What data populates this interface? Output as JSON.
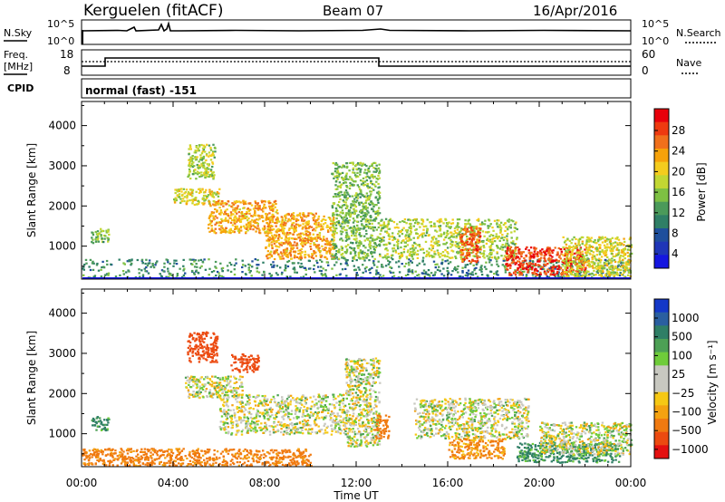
{
  "header": {
    "station": "Kerguelen (fitACF)",
    "beam": "Beam 07",
    "date": "16/Apr/2016"
  },
  "strips": {
    "nsky_label": "N.Sky",
    "nsky_ticks": [
      "10^5",
      "10^0"
    ],
    "nsearch_label": "N.Search",
    "nsearch_ticks": [
      "10^5",
      "10^0"
    ],
    "freq_label_line1": "Freq.",
    "freq_label_line2": "[MHz]",
    "freq_ticks": [
      "18",
      "8"
    ],
    "nave_label": "Nave",
    "nave_ticks": [
      "60",
      "0"
    ],
    "cpid_label": "CPID",
    "cpid_value": "normal (fast) -151"
  },
  "axes": {
    "ylabel": "Slant Range [km]",
    "xlabel": "Time UT",
    "y_ticks": [
      "4000",
      "3000",
      "2000",
      "1000"
    ],
    "x_ticks": [
      "00:00",
      "04:00",
      "08:00",
      "12:00",
      "16:00",
      "20:00",
      "00:00"
    ]
  },
  "colorbars": {
    "power_label": "Power [dB]",
    "power_ticks": [
      "28",
      "24",
      "20",
      "16",
      "12",
      "8",
      "4"
    ],
    "power_colors": [
      "#e8000b",
      "#ee3a10",
      "#f0701c",
      "#f6a20a",
      "#f4cc1e",
      "#c2d733",
      "#7ec043",
      "#4b9a5a",
      "#2f7f66",
      "#1f4f9c",
      "#1f36b8",
      "#1516e0"
    ],
    "velocity_label": "Velocity [m s⁻¹]",
    "velocity_ticks": [
      "1000",
      "500",
      "100",
      "25",
      "−25",
      "−100",
      "−500",
      "−1000"
    ],
    "velocity_colors": [
      "#1438c8",
      "#2a5fa0",
      "#2f7f66",
      "#4da055",
      "#6fcc3a",
      "#c8c8c0",
      "#c8c8c0",
      "#f6c814",
      "#f4a210",
      "#f07a10",
      "#ec4a10",
      "#e41010"
    ]
  },
  "chart_data": [
    {
      "type": "heatmap",
      "title": "Power",
      "xlabel": "Time UT",
      "ylabel": "Slant Range [km]",
      "xlim": [
        0,
        24
      ],
      "ylim": [
        180,
        4600
      ],
      "colorbar": "Power [dB]",
      "regions": [
        {
          "t0": 0.4,
          "t1": 1.2,
          "r0": 1100,
          "r1": 1450,
          "db": 12
        },
        {
          "t0": 0.0,
          "t1": 24.0,
          "r0": 220,
          "r1": 700,
          "db": 8
        },
        {
          "t0": 4.6,
          "t1": 5.8,
          "r0": 2700,
          "r1": 3550,
          "db": 14
        },
        {
          "t0": 4.0,
          "t1": 6.0,
          "r0": 2050,
          "r1": 2450,
          "db": 16
        },
        {
          "t0": 5.5,
          "t1": 8.5,
          "r0": 1350,
          "r1": 2150,
          "db": 20
        },
        {
          "t0": 8.0,
          "t1": 11.0,
          "r0": 700,
          "r1": 1850,
          "db": 20
        },
        {
          "t0": 10.9,
          "t1": 13.0,
          "r0": 700,
          "r1": 3100,
          "db": 12
        },
        {
          "t0": 13.0,
          "t1": 19.0,
          "r0": 700,
          "r1": 1700,
          "db": 14
        },
        {
          "t0": 16.5,
          "t1": 17.4,
          "r0": 600,
          "r1": 1500,
          "db": 24
        },
        {
          "t0": 18.5,
          "t1": 22.0,
          "r0": 300,
          "r1": 1000,
          "db": 26
        },
        {
          "t0": 21.0,
          "t1": 24.0,
          "r0": 250,
          "r1": 1250,
          "db": 16
        }
      ]
    },
    {
      "type": "heatmap",
      "title": "Velocity",
      "xlabel": "Time UT",
      "ylabel": "Slant Range [km]",
      "xlim": [
        0,
        24
      ],
      "ylim": [
        180,
        4600
      ],
      "colorbar": "Velocity [m s⁻¹]",
      "regions": [
        {
          "t0": 0.4,
          "t1": 1.2,
          "r0": 1100,
          "r1": 1450,
          "v": 120
        },
        {
          "t0": 0.0,
          "t1": 10.0,
          "r0": 220,
          "r1": 650,
          "v": -150
        },
        {
          "t0": 4.6,
          "t1": 5.9,
          "r0": 2800,
          "r1": 3550,
          "v": -400
        },
        {
          "t0": 6.5,
          "t1": 7.7,
          "r0": 2550,
          "r1": 3000,
          "v": -500
        },
        {
          "t0": 4.5,
          "t1": 7.0,
          "r0": 1900,
          "r1": 2450,
          "v": 0
        },
        {
          "t0": 6.0,
          "t1": 11.5,
          "r0": 1000,
          "r1": 2000,
          "v": 0
        },
        {
          "t0": 11.5,
          "t1": 13.0,
          "r0": 700,
          "r1": 2900,
          "v": 0
        },
        {
          "t0": 12.8,
          "t1": 13.4,
          "r0": 900,
          "r1": 1500,
          "v": -200
        },
        {
          "t0": 14.5,
          "t1": 19.5,
          "r0": 900,
          "r1": 1900,
          "v": 0
        },
        {
          "t0": 16.0,
          "t1": 18.5,
          "r0": 400,
          "r1": 900,
          "v": -120
        },
        {
          "t0": 19.0,
          "t1": 23.5,
          "r0": 300,
          "r1": 800,
          "v": 120
        },
        {
          "t0": 20.0,
          "t1": 24.0,
          "r0": 500,
          "r1": 1300,
          "v": 0
        }
      ]
    }
  ]
}
